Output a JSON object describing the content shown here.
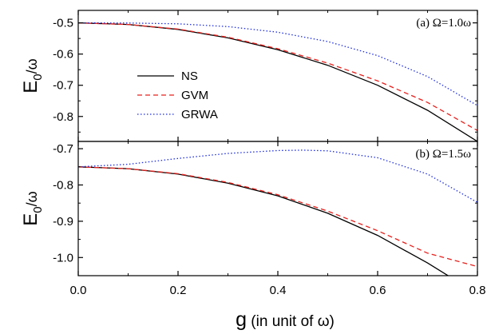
{
  "chart_data": [
    {
      "type": "line",
      "panel_label": "(a) Ω=1.0ω",
      "ylabel_main": "E",
      "ylabel_sub": "0",
      "ylabel_rest": "/ω",
      "xlim": [
        0.0,
        0.8
      ],
      "ylim": [
        -0.88,
        -0.46
      ],
      "yticks": [
        -0.5,
        -0.6,
        -0.7,
        -0.8
      ],
      "ytick_labels": [
        "-0.5",
        "-0.6",
        "-0.7",
        "-0.8"
      ],
      "legend": {
        "placement": "middle-left",
        "entries": [
          "NS",
          "GVM",
          "GRWA"
        ]
      },
      "series": [
        {
          "name": "NS",
          "color": "#000000",
          "style": "solid",
          "x": [
            0,
            0.1,
            0.2,
            0.3,
            0.4,
            0.5,
            0.6,
            0.7,
            0.8
          ],
          "y": [
            -0.5,
            -0.505,
            -0.521,
            -0.548,
            -0.586,
            -0.636,
            -0.7,
            -0.78,
            -0.88
          ]
        },
        {
          "name": "GVM",
          "color": "#e8201c",
          "style": "dashed",
          "x": [
            0,
            0.1,
            0.2,
            0.3,
            0.4,
            0.5,
            0.6,
            0.7,
            0.8
          ],
          "y": [
            -0.5,
            -0.505,
            -0.52,
            -0.546,
            -0.583,
            -0.629,
            -0.686,
            -0.755,
            -0.845
          ]
        },
        {
          "name": "GRWA",
          "color": "#1f2fe0",
          "style": "dotted",
          "x": [
            0,
            0.1,
            0.2,
            0.3,
            0.4,
            0.5,
            0.6,
            0.7,
            0.8
          ],
          "y": [
            -0.5,
            -0.5005,
            -0.503,
            -0.512,
            -0.53,
            -0.56,
            -0.605,
            -0.672,
            -0.765
          ]
        }
      ]
    },
    {
      "type": "line",
      "panel_label": "(b) Ω=1.5ω",
      "ylabel_main": "E",
      "ylabel_sub": "0",
      "ylabel_rest": "/ω",
      "xlim": [
        0.0,
        0.8
      ],
      "ylim": [
        -1.05,
        -0.68
      ],
      "yticks": [
        -0.7,
        -0.8,
        -0.9,
        -1.0
      ],
      "ytick_labels": [
        "-0.7",
        "-0.8",
        "-0.9",
        "-1.0"
      ],
      "series": [
        {
          "name": "NS",
          "color": "#000000",
          "style": "solid",
          "x": [
            0,
            0.1,
            0.2,
            0.3,
            0.4,
            0.5,
            0.6,
            0.7,
            0.8
          ],
          "y": [
            -0.75,
            -0.755,
            -0.77,
            -0.795,
            -0.83,
            -0.878,
            -0.939,
            -1.015,
            -1.1
          ]
        },
        {
          "name": "GVM",
          "color": "#e8201c",
          "style": "dashed",
          "x": [
            0,
            0.1,
            0.2,
            0.3,
            0.4,
            0.5,
            0.6,
            0.7,
            0.8
          ],
          "y": [
            -0.75,
            -0.755,
            -0.769,
            -0.793,
            -0.827,
            -0.872,
            -0.926,
            -0.988,
            -1.025
          ]
        },
        {
          "name": "GRWA",
          "color": "#1f2fe0",
          "style": "dotted",
          "x": [
            0,
            0.1,
            0.2,
            0.3,
            0.4,
            0.45,
            0.5,
            0.6,
            0.7,
            0.8
          ],
          "y": [
            -0.75,
            -0.743,
            -0.727,
            -0.713,
            -0.705,
            -0.704,
            -0.706,
            -0.725,
            -0.77,
            -0.848
          ]
        }
      ]
    }
  ],
  "x_axis": {
    "label_main": "g",
    "label_rest": " (in unit of ω)",
    "ticks": [
      0.0,
      0.2,
      0.4,
      0.6,
      0.8
    ],
    "tick_labels": [
      "0.0",
      "0.2",
      "0.4",
      "0.6",
      "0.8"
    ]
  }
}
